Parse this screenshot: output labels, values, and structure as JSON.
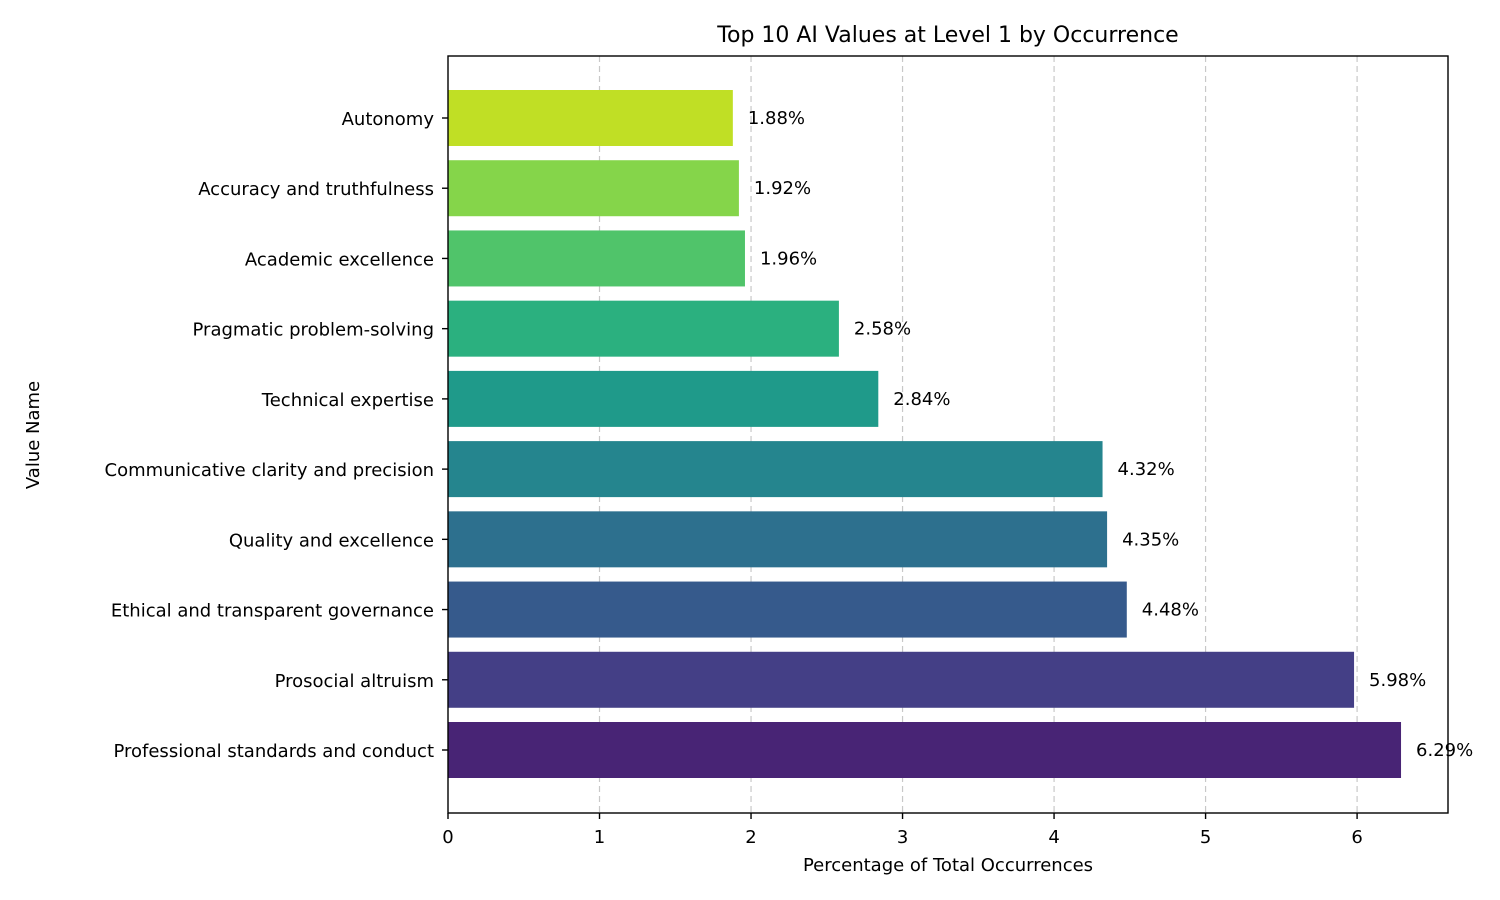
{
  "chart_data": {
    "type": "bar",
    "orientation": "horizontal",
    "title": "Top 10 AI Values at Level 1 by Occurrence",
    "xlabel": "Percentage of Total Occurrences",
    "ylabel": "Value Name",
    "xlim": [
      0,
      6.6
    ],
    "xticks": [
      0,
      1,
      2,
      3,
      4,
      5,
      6
    ],
    "grid": "x-dashed",
    "categories": [
      "Professional standards and conduct",
      "Prosocial altruism",
      "Ethical and transparent governance",
      "Quality and excellence",
      "Communicative clarity and precision",
      "Technical expertise",
      "Pragmatic problem-solving",
      "Academic excellence",
      "Accuracy and truthfulness",
      "Autonomy"
    ],
    "values": [
      6.29,
      5.98,
      4.48,
      4.35,
      4.32,
      2.84,
      2.58,
      1.96,
      1.92,
      1.88
    ],
    "value_labels": [
      "6.29%",
      "5.98%",
      "4.48%",
      "4.35%",
      "4.32%",
      "2.84%",
      "2.58%",
      "1.96%",
      "1.92%",
      "1.88%"
    ],
    "colors": [
      "#482475",
      "#443f86",
      "#365a8c",
      "#2d708e",
      "#25858e",
      "#1f9a8a",
      "#2bb07f",
      "#50c46a",
      "#85d54a",
      "#c0df25"
    ]
  }
}
